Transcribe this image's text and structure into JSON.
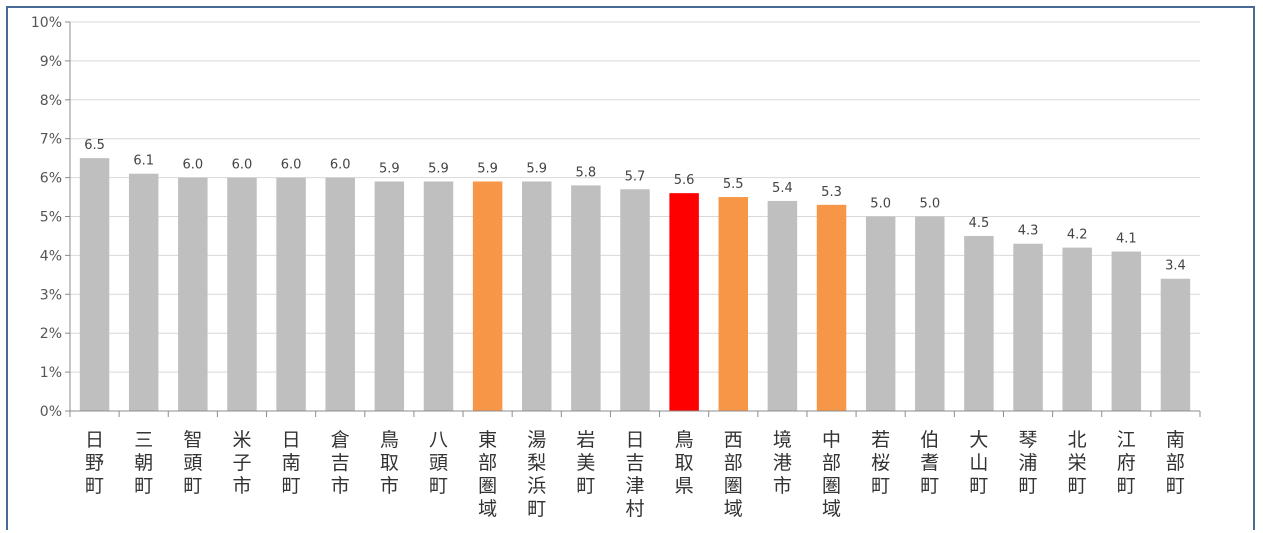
{
  "chart_data": {
    "type": "bar",
    "categories": [
      "日野町",
      "三朝町",
      "智頭町",
      "米子市",
      "日南町",
      "倉吉市",
      "鳥取市",
      "八頭町",
      "東部圏域",
      "湯梨浜町",
      "岩美町",
      "日吉津村",
      "鳥取県",
      "西部圏域",
      "境港市",
      "中部圏域",
      "若桜町",
      "伯耆町",
      "大山町",
      "琴浦町",
      "北栄町",
      "江府町",
      "南部町"
    ],
    "values": [
      6.5,
      6.1,
      6.0,
      6.0,
      6.0,
      6.0,
      5.9,
      5.9,
      5.9,
      5.9,
      5.8,
      5.7,
      5.6,
      5.5,
      5.4,
      5.3,
      5.0,
      5.0,
      4.5,
      4.3,
      4.2,
      4.1,
      3.4
    ],
    "value_labels": [
      "6.5",
      "6.1",
      "6.0",
      "6.0",
      "6.0",
      "6.0",
      "5.9",
      "5.9",
      "5.9",
      "5.9",
      "5.8",
      "5.7",
      "5.6",
      "5.5",
      "5.4",
      "5.3",
      "5.0",
      "5.0",
      "4.5",
      "4.3",
      "4.2",
      "4.1",
      "3.4"
    ],
    "bar_colors": [
      "#bfbfbf",
      "#bfbfbf",
      "#bfbfbf",
      "#bfbfbf",
      "#bfbfbf",
      "#bfbfbf",
      "#bfbfbf",
      "#bfbfbf",
      "#f79646",
      "#bfbfbf",
      "#bfbfbf",
      "#bfbfbf",
      "#ff0000",
      "#f79646",
      "#bfbfbf",
      "#f79646",
      "#bfbfbf",
      "#bfbfbf",
      "#bfbfbf",
      "#bfbfbf",
      "#bfbfbf",
      "#bfbfbf",
      "#bfbfbf"
    ],
    "yticks": [
      "0%",
      "1%",
      "2%",
      "3%",
      "4%",
      "5%",
      "6%",
      "7%",
      "8%",
      "9%",
      "10%"
    ],
    "ylim": [
      0,
      10
    ],
    "grid": true,
    "title": "",
    "xlabel": "",
    "ylabel": ""
  }
}
